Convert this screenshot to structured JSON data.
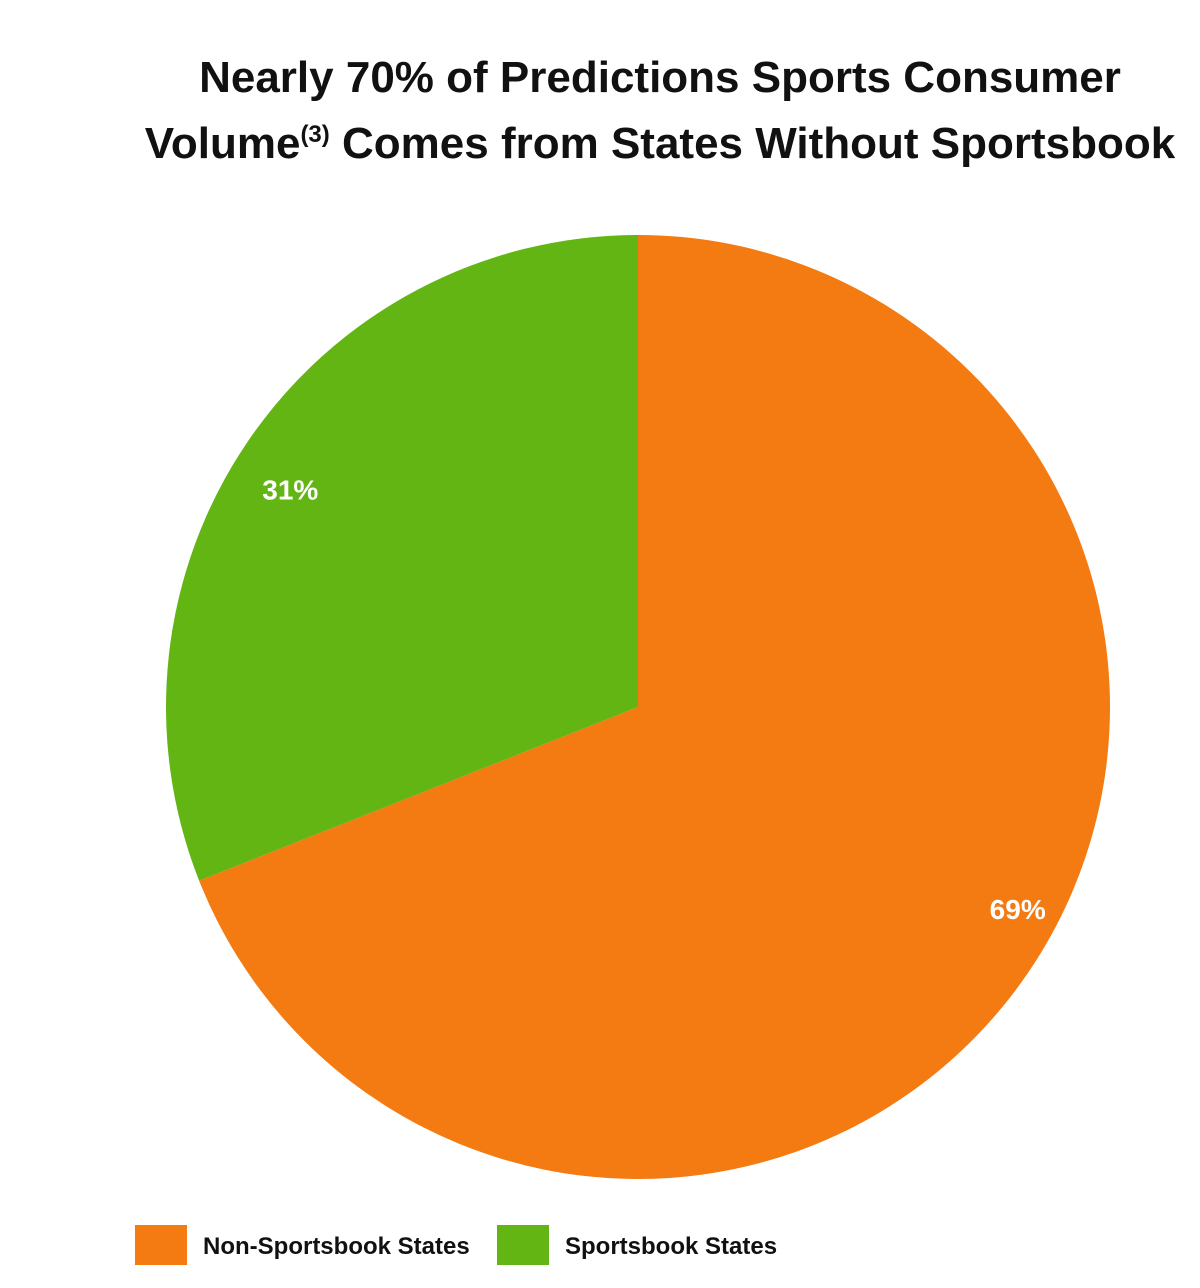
{
  "chart_data": {
    "type": "pie",
    "title_line1": "Nearly 70% of Predictions Sports Consumer",
    "title_line2_pre": "Volume",
    "title_line2_sup": "(3)",
    "title_line2_post": " Comes from States Without Sportsbook",
    "slices": [
      {
        "name": "Non-Sportsbook States",
        "value": 69,
        "label": "69%",
        "color": "#F47A12"
      },
      {
        "name": "Sportsbook States",
        "value": 31,
        "label": "31%",
        "color": "#63B514"
      }
    ],
    "start_angle": "12 o'clock",
    "direction": "clockwise",
    "legend_position": "bottom-left"
  }
}
